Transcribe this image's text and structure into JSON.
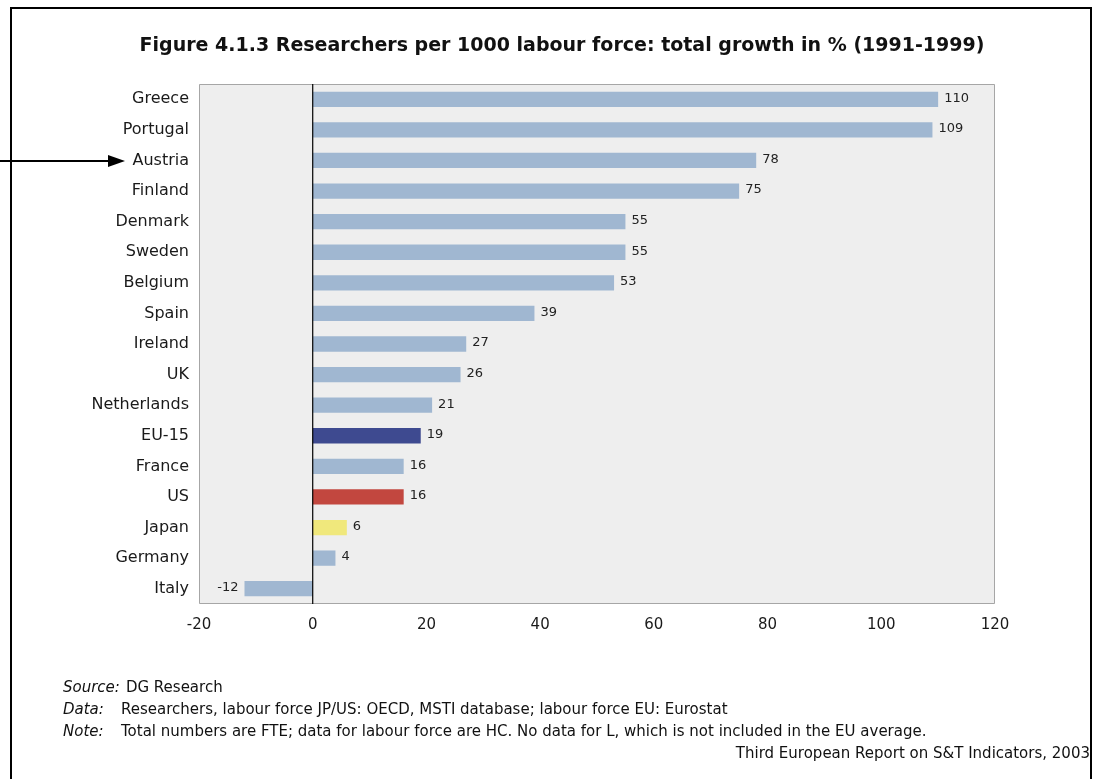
{
  "chart_data": {
    "type": "bar",
    "orientation": "horizontal",
    "title": "Figure 4.1.3 Researchers per 1000 labour force: total growth in % (1991-1999)",
    "categories": [
      "Greece",
      "Portugal",
      "Austria",
      "Finland",
      "Denmark",
      "Sweden",
      "Belgium",
      "Spain",
      "Ireland",
      "UK",
      "Netherlands",
      "EU-15",
      "France",
      "US",
      "Japan",
      "Germany",
      "Italy"
    ],
    "values": [
      110,
      109,
      78,
      75,
      55,
      55,
      53,
      39,
      27,
      26,
      21,
      19,
      16,
      16,
      6,
      4,
      -12
    ],
    "colors": [
      "#a0b7d1",
      "#a0b7d1",
      "#a0b7d1",
      "#a0b7d1",
      "#a0b7d1",
      "#a0b7d1",
      "#a0b7d1",
      "#a0b7d1",
      "#a0b7d1",
      "#a0b7d1",
      "#a0b7d1",
      "#3e4a90",
      "#a0b7d1",
      "#c2473f",
      "#f0e87c",
      "#a0b7d1",
      "#a0b7d1"
    ],
    "xlim": [
      -20,
      120
    ],
    "xticks": [
      -20,
      0,
      20,
      40,
      60,
      80,
      100,
      120
    ],
    "data_labels": true,
    "ref_lines": [
      {
        "axis": "x",
        "value": 0,
        "color": "#000000"
      }
    ],
    "annotations": [
      "Source: DG Research",
      "Data: Researchers, labour force JP/US: OECD, MSTI database; labour force EU: Eurostat",
      "Note: Total numbers are FTE; data for labour force are HC. No data for L, which is not included in the EU average.",
      "Third European Report on S&T Indicators, 2003"
    ]
  }
}
